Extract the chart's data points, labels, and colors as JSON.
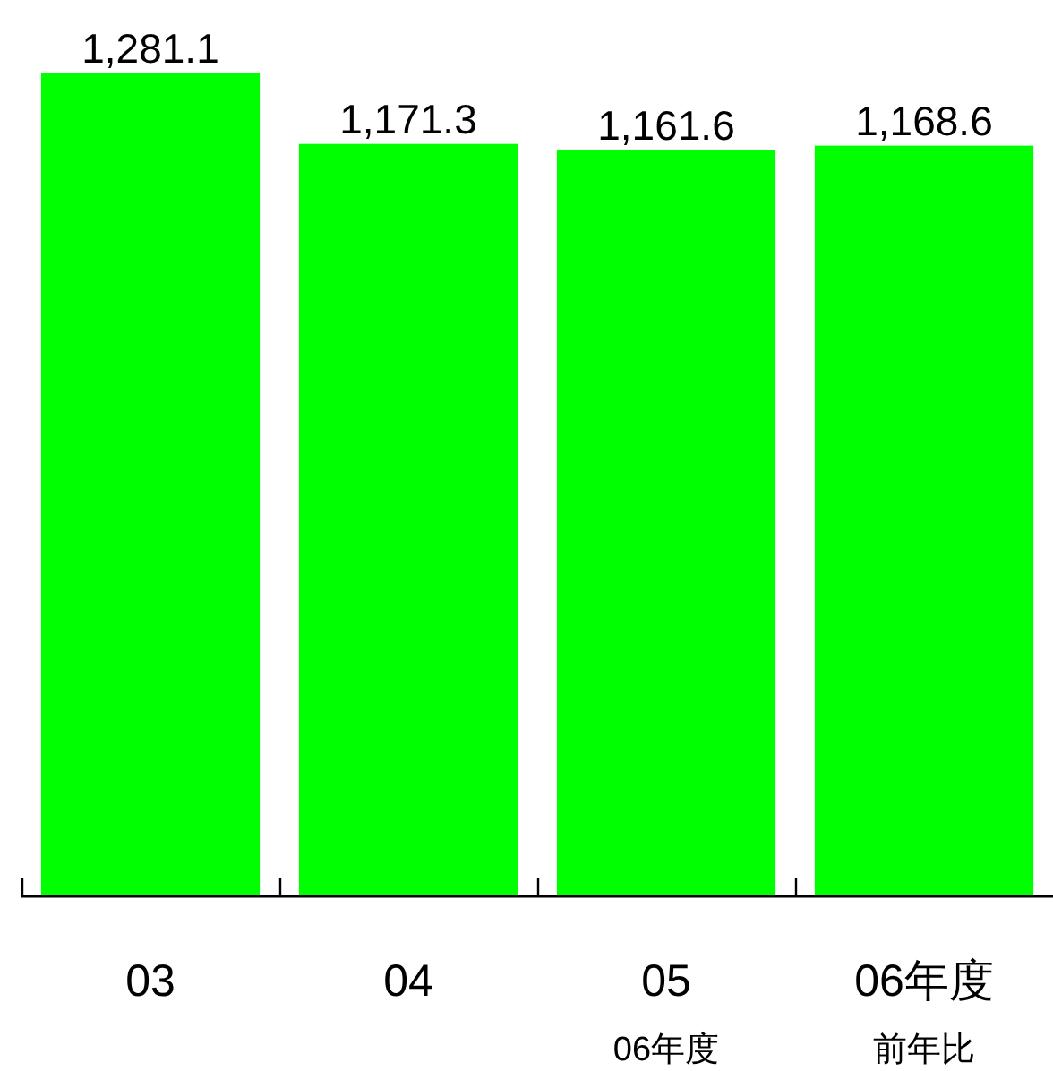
{
  "chart_data": {
    "type": "bar",
    "categories": [
      "03",
      "04",
      "05",
      "06年度"
    ],
    "values": [
      1281.1,
      1171.3,
      1161.6,
      1168.6
    ],
    "color": "#00ff00",
    "value_labels": [
      "1,281.1",
      "1,171.3",
      "1,161.6",
      "1,168.6"
    ],
    "annotations": [
      "06年度",
      "前年比"
    ]
  }
}
